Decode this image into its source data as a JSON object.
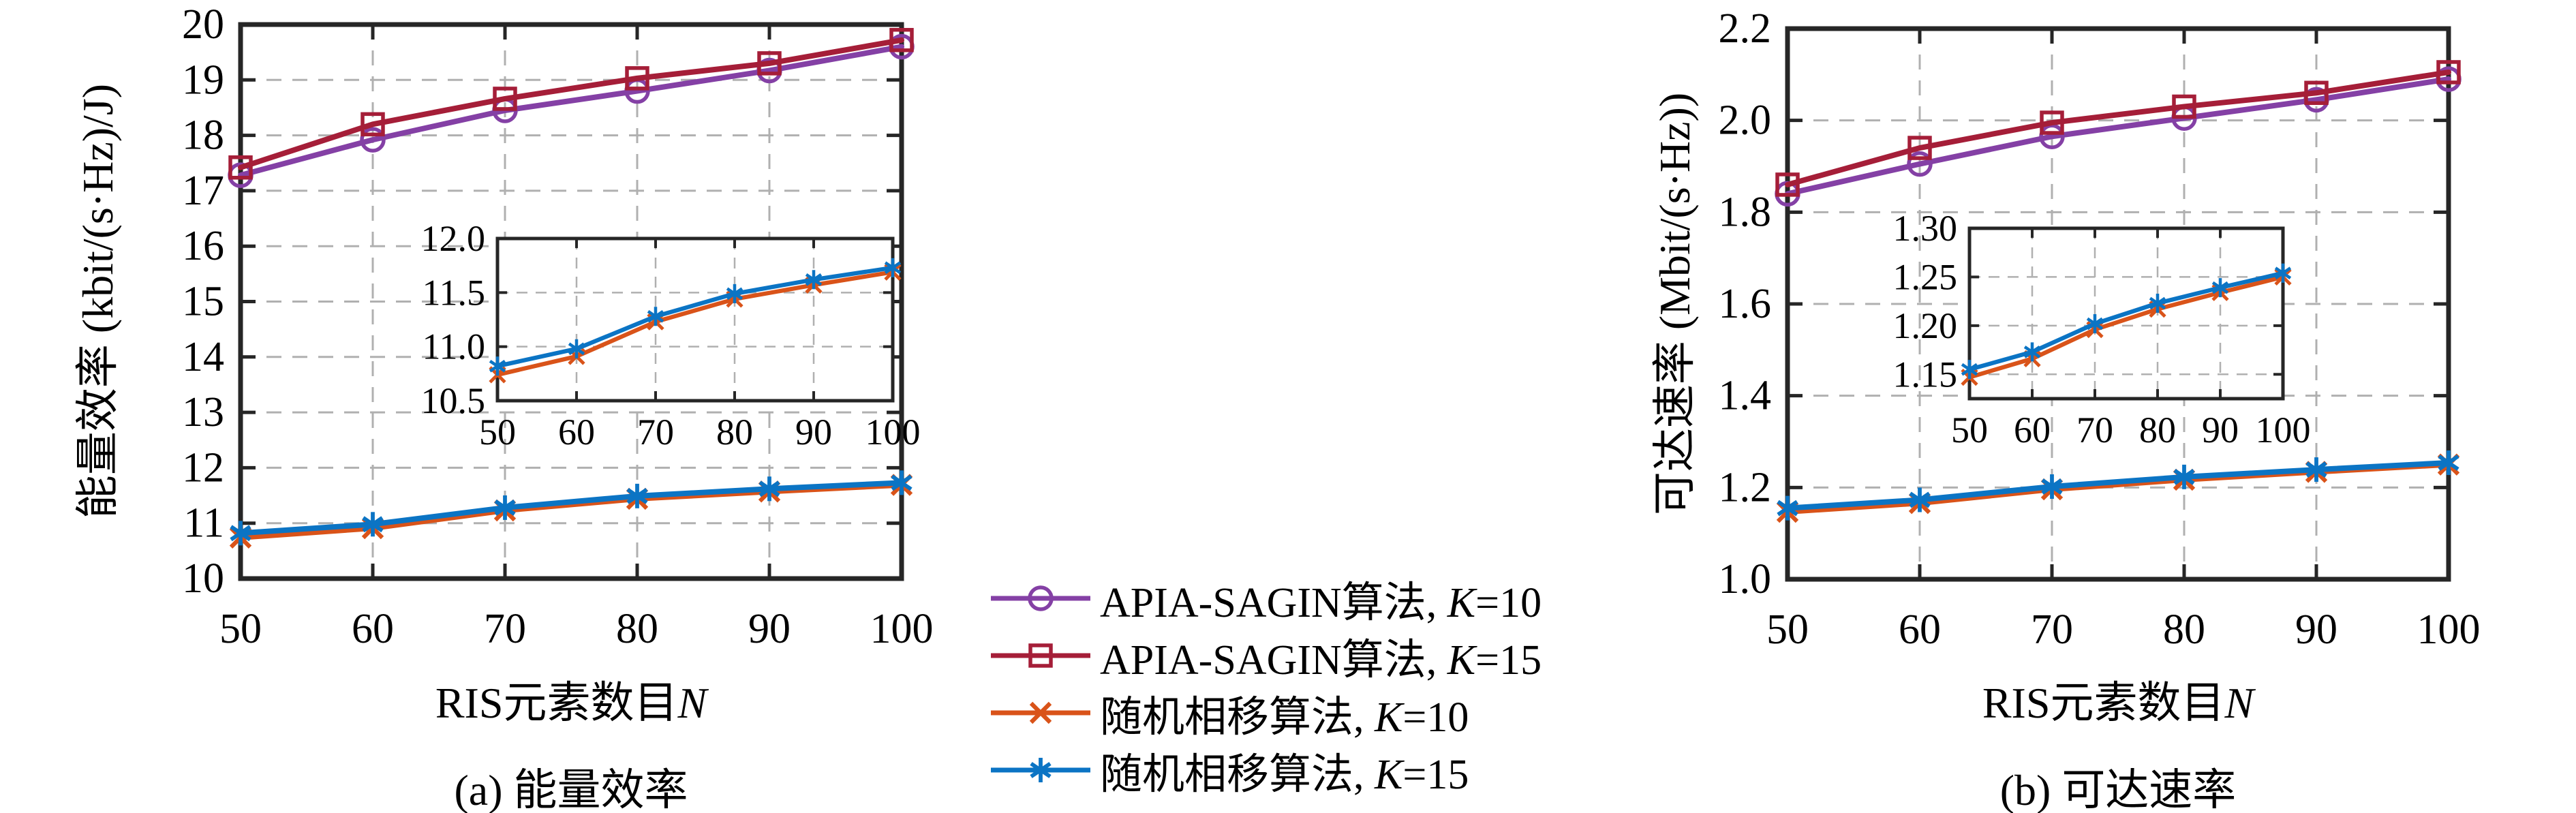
{
  "figure": {
    "background": "#ffffff",
    "axis_color": "#262626",
    "grid_color": "#b0b0b0"
  },
  "legend": {
    "items": [
      {
        "prefix": "APIA-SAGIN算法, ",
        "var": "K",
        "suffix": "=10",
        "marker": "circle",
        "color": "#8440A5"
      },
      {
        "prefix": "APIA-SAGIN算法, ",
        "var": "K",
        "suffix": "=15",
        "marker": "square",
        "color": "#A51E38"
      },
      {
        "prefix": "随机相移算法, ",
        "var": "K",
        "suffix": "=10",
        "marker": "x",
        "color": "#D95319"
      },
      {
        "prefix": "随机相移算法, ",
        "var": "K",
        "suffix": "=15",
        "marker": "asterisk",
        "color": "#0B74C4"
      }
    ]
  },
  "chart_data": [
    {
      "id": "a",
      "type": "line",
      "caption": "(a) 能量效率",
      "xlabel": "RIS元素数目",
      "xlabel_var": "N",
      "ylabel": "能量效率 (kbit/(s·Hz)/J)",
      "x": [
        50,
        60,
        70,
        80,
        90,
        100
      ],
      "xlim": [
        50,
        100
      ],
      "ylim": [
        10,
        20
      ],
      "xticks": [
        50,
        60,
        70,
        80,
        90,
        100
      ],
      "xtick_labels": [
        "50",
        "60",
        "70",
        "80",
        "90",
        "100"
      ],
      "yticks": [
        10,
        11,
        12,
        13,
        14,
        15,
        16,
        17,
        18,
        19,
        20
      ],
      "ytick_labels": [
        "10",
        "11",
        "12",
        "13",
        "14",
        "15",
        "16",
        "17",
        "18",
        "19",
        "20"
      ],
      "grid": true,
      "legend_position": "below-center",
      "series": [
        {
          "name": "APIA-SAGIN算法, K=10",
          "color": "#8440A5",
          "marker": "circle",
          "values": [
            17.28,
            17.92,
            18.45,
            18.8,
            19.17,
            19.6
          ]
        },
        {
          "name": "APIA-SAGIN算法, K=15",
          "color": "#A51E38",
          "marker": "square",
          "values": [
            17.42,
            18.2,
            18.66,
            19.03,
            19.3,
            19.72
          ]
        },
        {
          "name": "随机相移算法, K=10",
          "color": "#D95319",
          "marker": "x",
          "values": [
            10.74,
            10.91,
            11.23,
            11.44,
            11.57,
            11.69
          ]
        },
        {
          "name": "随机相移算法, K=15",
          "color": "#0B74C4",
          "marker": "asterisk",
          "values": [
            10.82,
            10.98,
            11.28,
            11.49,
            11.62,
            11.73
          ]
        }
      ],
      "inset": {
        "xlim": [
          50,
          100
        ],
        "ylim": [
          10.5,
          12.0
        ],
        "xticks": [
          50,
          60,
          70,
          80,
          90,
          100
        ],
        "xtick_labels": [
          "50",
          "60",
          "70",
          "80",
          "90",
          "100"
        ],
        "yticks": [
          10.5,
          11.0,
          11.5,
          12.0
        ],
        "ytick_labels": [
          "10.5",
          "11.0",
          "11.5",
          "12.0"
        ],
        "series_indices": [
          2,
          3
        ]
      }
    },
    {
      "id": "b",
      "type": "line",
      "caption": "(b) 可达速率",
      "xlabel": "RIS元素数目",
      "xlabel_var": "N",
      "ylabel": "可达速率 (Mbit/(s·Hz))",
      "x": [
        50,
        60,
        70,
        80,
        90,
        100
      ],
      "xlim": [
        50,
        100
      ],
      "ylim": [
        1.0,
        2.2
      ],
      "xticks": [
        50,
        60,
        70,
        80,
        90,
        100
      ],
      "xtick_labels": [
        "50",
        "60",
        "70",
        "80",
        "90",
        "100"
      ],
      "yticks": [
        1.0,
        1.2,
        1.4,
        1.6,
        1.8,
        2.0,
        2.2
      ],
      "ytick_labels": [
        "1.0",
        "1.2",
        "1.4",
        "1.6",
        "1.8",
        "2.0",
        "2.2"
      ],
      "grid": true,
      "series": [
        {
          "name": "APIA-SAGIN算法, K=10",
          "color": "#8440A5",
          "marker": "circle",
          "values": [
            1.84,
            1.905,
            1.965,
            2.005,
            2.045,
            2.09
          ]
        },
        {
          "name": "APIA-SAGIN算法, K=15",
          "color": "#A51E38",
          "marker": "square",
          "values": [
            1.86,
            1.94,
            1.995,
            2.03,
            2.06,
            2.105
          ]
        },
        {
          "name": "随机相移算法, K=10",
          "color": "#D95319",
          "marker": "x",
          "values": [
            1.147,
            1.166,
            1.196,
            1.217,
            1.234,
            1.25
          ]
        },
        {
          "name": "随机相移算法, K=15",
          "color": "#0B74C4",
          "marker": "asterisk",
          "values": [
            1.155,
            1.173,
            1.202,
            1.223,
            1.239,
            1.254
          ]
        }
      ],
      "inset": {
        "xlim": [
          50,
          100
        ],
        "ylim": [
          1.125,
          1.3
        ],
        "xticks": [
          50,
          60,
          70,
          80,
          90,
          100
        ],
        "xtick_labels": [
          "50",
          "60",
          "70",
          "80",
          "90",
          "100"
        ],
        "yticks": [
          1.15,
          1.2,
          1.25,
          1.3
        ],
        "ytick_labels": [
          "1.15",
          "1.20",
          "1.25",
          "1.30"
        ],
        "series_indices": [
          2,
          3
        ]
      }
    }
  ]
}
